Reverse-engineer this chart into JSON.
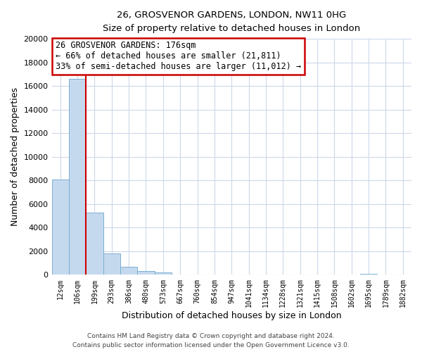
{
  "title": "26, GROSVENOR GARDENS, LONDON, NW11 0HG",
  "subtitle": "Size of property relative to detached houses in London",
  "xlabel": "Distribution of detached houses by size in London",
  "ylabel": "Number of detached properties",
  "bar_labels": [
    "12sqm",
    "106sqm",
    "199sqm",
    "293sqm",
    "386sqm",
    "480sqm",
    "573sqm",
    "667sqm",
    "760sqm",
    "854sqm",
    "947sqm",
    "1041sqm",
    "1134sqm",
    "1228sqm",
    "1321sqm",
    "1415sqm",
    "1508sqm",
    "1602sqm",
    "1695sqm",
    "1789sqm",
    "1882sqm"
  ],
  "bar_values": [
    8100,
    16600,
    5300,
    1800,
    700,
    300,
    200,
    0,
    0,
    0,
    0,
    0,
    0,
    0,
    0,
    0,
    0,
    0,
    100,
    0,
    0
  ],
  "bar_color": "#c5d9ee",
  "bar_edge_color": "#7aafd4",
  "vline_x": 1.5,
  "vline_color": "#cc0000",
  "annotation_title": "26 GROSVENOR GARDENS: 176sqm",
  "annotation_line1": "← 66% of detached houses are smaller (21,811)",
  "annotation_line2": "33% of semi-detached houses are larger (11,012) →",
  "annotation_box_color": "#ffffff",
  "annotation_box_edge": "#cc0000",
  "ylim": [
    0,
    20000
  ],
  "yticks": [
    0,
    2000,
    4000,
    6000,
    8000,
    10000,
    12000,
    14000,
    16000,
    18000,
    20000
  ],
  "footer1": "Contains HM Land Registry data © Crown copyright and database right 2024.",
  "footer2": "Contains public sector information licensed under the Open Government Licence v3.0.",
  "bg_color": "#ffffff",
  "grid_color": "#ccd8ea",
  "figsize": [
    6.0,
    5.0
  ],
  "dpi": 100
}
